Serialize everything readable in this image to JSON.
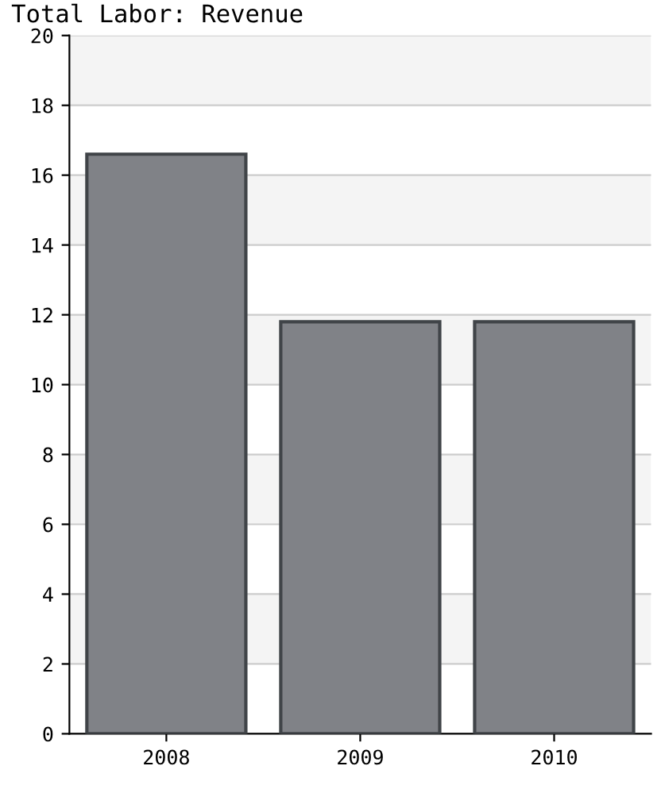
{
  "chart_data": {
    "type": "bar",
    "title": "Total Labor: Revenue",
    "categories": [
      "2008",
      "2009",
      "2010"
    ],
    "values": [
      16.6,
      11.8,
      11.8
    ],
    "color": "#808287",
    "ylim": [
      0,
      20
    ],
    "yticks": [
      0,
      2,
      4,
      6,
      8,
      10,
      12,
      14,
      16,
      18,
      20
    ],
    "grid": "y"
  }
}
